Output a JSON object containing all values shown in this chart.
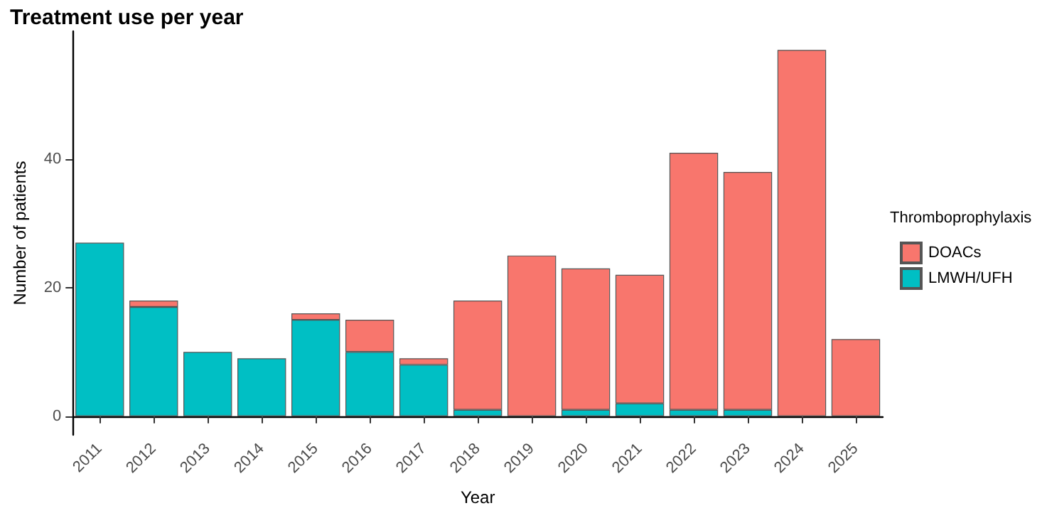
{
  "chart_data": {
    "type": "bar",
    "title": "Treatment use per year",
    "xlabel": "Year",
    "ylabel": "Number of patients",
    "legend_title": "Thromboprophylaxis",
    "categories": [
      "2011",
      "2012",
      "2013",
      "2014",
      "2015",
      "2016",
      "2017",
      "2018",
      "2019",
      "2020",
      "2021",
      "2022",
      "2023",
      "2024",
      "2025"
    ],
    "series": [
      {
        "name": "LMWH/UFH",
        "color": "#00bfc4",
        "values": [
          27,
          17,
          10,
          9,
          15,
          10,
          8,
          1,
          0,
          1,
          2,
          1,
          1,
          0,
          0
        ]
      },
      {
        "name": "DOACs",
        "color": "#f8766d",
        "values": [
          0,
          1,
          0,
          0,
          1,
          5,
          1,
          17,
          25,
          22,
          20,
          40,
          37,
          57,
          12
        ]
      }
    ],
    "stacked": true,
    "ylim": [
      -2.9,
      59.9
    ],
    "yticks": [
      0,
      20,
      40
    ],
    "grid": false,
    "legend": "right"
  }
}
